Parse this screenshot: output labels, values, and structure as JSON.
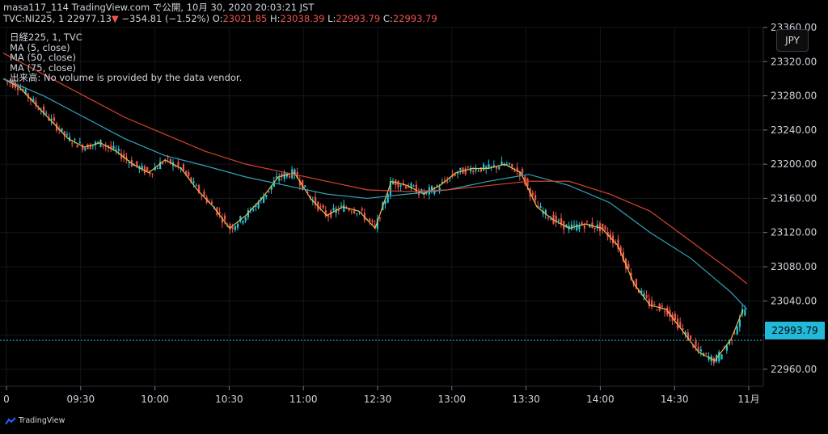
{
  "header": {
    "publish_line": "masa117_114 TradingView.com で公開, 10月 30, 2020 20:03:21 JST",
    "symbol_line": "TVC:NI225, 1",
    "last": "22977.13",
    "change": "−354.81 (−1.52%)",
    "o_label": "O:",
    "o_val": "23021.85",
    "h_label": "H:",
    "h_val": "23038.39",
    "l_label": "L:",
    "l_val": "22993.79",
    "c_label": "C:",
    "c_val": "22993.79"
  },
  "legend": {
    "title": "日経225, 1, TVC",
    "ma5": "MA (5, close)",
    "ma50": "MA (50, close)",
    "ma75": "MA (75, close)",
    "volume": "出来高: No volume is provided by the data vendor."
  },
  "currency_badge": "JPY",
  "last_price_tag": "22993.79",
  "footer": {
    "brand": "TradingView"
  },
  "colors": {
    "up": "#26c6da",
    "down": "#ef5350",
    "ma5": "#e5c04a",
    "ma50": "#2fa6b8",
    "ma75": "#d8432e",
    "price_tag": "#22b8d8"
  },
  "chart_data": {
    "type": "line",
    "title": "",
    "y_axis": {
      "min": 22940,
      "max": 23360,
      "ticks": [
        22960,
        23000,
        23040,
        23080,
        23120,
        23160,
        23200,
        23240,
        23280,
        23320,
        23360
      ],
      "tick_labels": [
        "22960.00",
        "23000.00",
        "23040.00",
        "23080.00",
        "23120.00",
        "23160.00",
        "23200.00",
        "23240.00",
        "23280.00",
        "23320.00",
        "23360.00"
      ]
    },
    "x_axis": {
      "tick_labels": [
        "0",
        "09:30",
        "10:00",
        "10:30",
        "11:00",
        "12:30",
        "13:00",
        "13:30",
        "14:00",
        "14:30",
        "11月"
      ]
    },
    "series": [
      {
        "name": "MA (5, close)",
        "x": [
          0,
          20,
          40,
          60,
          80,
          100,
          120,
          140,
          160,
          180,
          200,
          220,
          240,
          260,
          280,
          300,
          320,
          340,
          360,
          380,
          400,
          420,
          440,
          460,
          480,
          500,
          520,
          540,
          560,
          580,
          600,
          620,
          640,
          660,
          680,
          700,
          720,
          740,
          760,
          780,
          800,
          820,
          840,
          860,
          880,
          900,
          915
        ],
        "y": [
          23300,
          23290,
          23270,
          23250,
          23230,
          23220,
          23225,
          23215,
          23200,
          23190,
          23205,
          23195,
          23170,
          23150,
          23125,
          23140,
          23160,
          23185,
          23190,
          23160,
          23140,
          23150,
          23145,
          23125,
          23180,
          23175,
          23165,
          23175,
          23190,
          23195,
          23195,
          23200,
          23190,
          23150,
          23135,
          23125,
          23130,
          23125,
          23105,
          23060,
          23035,
          23030,
          23005,
          22980,
          22970,
          22995,
          23030
        ]
      },
      {
        "name": "MA (50, close)",
        "x": [
          0,
          50,
          100,
          150,
          200,
          250,
          300,
          350,
          400,
          450,
          500,
          550,
          600,
          650,
          700,
          750,
          800,
          850,
          900,
          920
        ],
        "y": [
          23300,
          23280,
          23255,
          23230,
          23210,
          23198,
          23185,
          23175,
          23165,
          23160,
          23165,
          23170,
          23180,
          23188,
          23175,
          23155,
          23120,
          23090,
          23050,
          23030
        ]
      },
      {
        "name": "MA (75, close)",
        "x": [
          0,
          50,
          100,
          150,
          200,
          250,
          300,
          350,
          400,
          450,
          500,
          550,
          600,
          650,
          700,
          750,
          800,
          850,
          900,
          920
        ],
        "y": [
          23330,
          23305,
          23280,
          23255,
          23235,
          23215,
          23200,
          23190,
          23180,
          23170,
          23168,
          23170,
          23175,
          23180,
          23180,
          23165,
          23145,
          23110,
          23075,
          23060
        ]
      }
    ]
  }
}
